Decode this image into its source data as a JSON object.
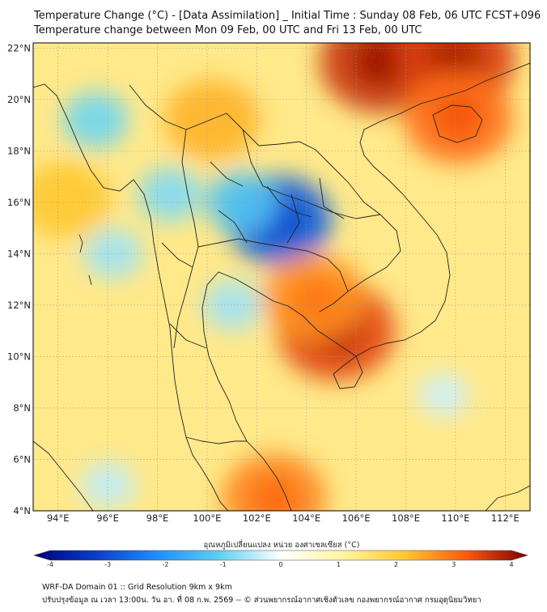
{
  "title": {
    "line1": "Temperature Change (°C) - [Data Assimilation] _ Initial Time : Sunday 08 Feb, 06 UTC FCST+096",
    "line2": "Temperature change between Mon 09 Feb, 00 UTC and Fri 13 Feb, 00 UTC"
  },
  "axes": {
    "lat_ticks": [
      "22°N",
      "20°N",
      "18°N",
      "16°N",
      "14°N",
      "12°N",
      "10°N",
      "8°N",
      "6°N",
      "4°N"
    ],
    "lat_values": [
      22,
      20,
      18,
      16,
      14,
      12,
      10,
      8,
      6,
      4
    ],
    "lon_ticks": [
      "94°E",
      "96°E",
      "98°E",
      "100°E",
      "102°E",
      "104°E",
      "106°E",
      "108°E",
      "110°E",
      "112°E"
    ],
    "lon_values": [
      94,
      96,
      98,
      100,
      102,
      104,
      106,
      108,
      110,
      112
    ],
    "lon_range": [
      93,
      113
    ],
    "lat_range": [
      4,
      22.2
    ]
  },
  "colorbar": {
    "label": "อุณหภูมิเปลี่ยนแปลง หน่วย องศาเซลเซียส (°C)",
    "ticks": [
      "-4",
      "-3",
      "-2",
      "-1",
      "0",
      "1",
      "2",
      "3",
      "4"
    ],
    "tick_values": [
      -4,
      -3,
      -2,
      -1,
      0,
      1,
      2,
      3,
      4
    ],
    "range": [
      -4,
      4
    ],
    "colors": {
      "neg4": "#00007a",
      "neg3": "#0a3cc8",
      "neg2": "#1e90ff",
      "neg1": "#5fd0f0",
      "zero": "#ffffff",
      "pos1": "#fff5a0",
      "pos2": "#ffc830",
      "pos3": "#ff5a10",
      "pos4": "#7a0000"
    }
  },
  "anomalies": [
    {
      "lon": 102.9,
      "lat": 15.3,
      "value": -2.6
    },
    {
      "lon": 101.4,
      "lat": 16.0,
      "value": -1.2
    },
    {
      "lon": 98.5,
      "lat": 16.3,
      "value": -0.8
    },
    {
      "lon": 95.5,
      "lat": 19.2,
      "value": -0.9
    },
    {
      "lon": 101.0,
      "lat": 12.0,
      "value": -0.6
    },
    {
      "lon": 96.2,
      "lat": 14.0,
      "value": -0.6
    },
    {
      "lon": 105.2,
      "lat": 11.0,
      "value": 3.2
    },
    {
      "lon": 104.3,
      "lat": 12.3,
      "value": 2.5
    },
    {
      "lon": 107.0,
      "lat": 21.5,
      "value": 3.4
    },
    {
      "lon": 110.0,
      "lat": 21.6,
      "value": 3.3
    },
    {
      "lon": 110.1,
      "lat": 19.3,
      "value": 2.8
    },
    {
      "lon": 102.7,
      "lat": 4.5,
      "value": 2.6
    },
    {
      "lon": 100.2,
      "lat": 19.2,
      "value": 2.2
    },
    {
      "lon": 94.3,
      "lat": 16.1,
      "value": 2.0
    },
    {
      "lon": 109.5,
      "lat": 8.5,
      "value": -0.3
    },
    {
      "lon": 96.0,
      "lat": 5.0,
      "value": -0.4
    }
  ],
  "footer": {
    "line1": "WRF-DA Domain 01 :: Grid Resolution 9km x 9km",
    "line2": "ปรับปรุงข้อมูล ณ เวลา 13:00น. วัน อา. ที่ 08 ก.พ. 2569 -- © ส่วนพยากรณ์อากาศเชิงตัวเลข กองพยากรณ์อากาศ กรมอุตุนิยมวิทยา"
  }
}
